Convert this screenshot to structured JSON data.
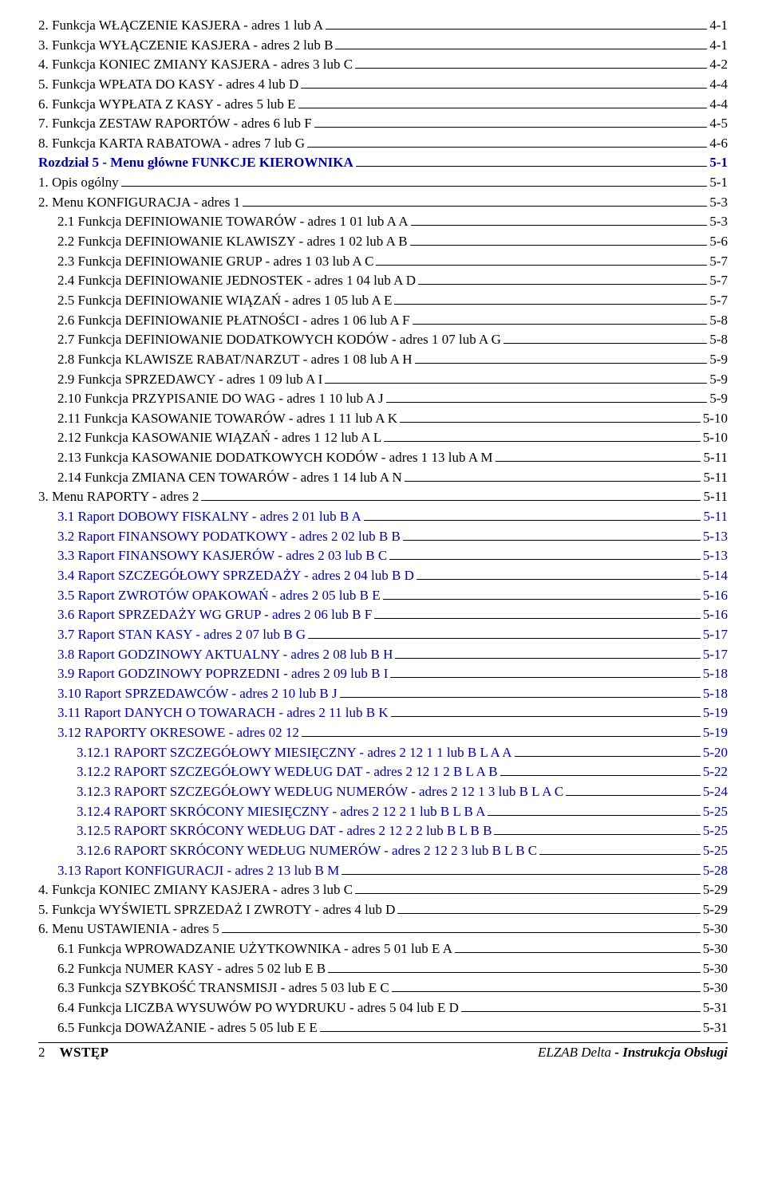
{
  "toc": [
    {
      "text": "2. Funkcja WŁĄCZENIE KASJERA - adres 1 lub A",
      "page": "4-1",
      "indent": 0,
      "style": "black"
    },
    {
      "text": "3. Funkcja WYŁĄCZENIE KASJERA - adres 2 lub B",
      "page": "4-1",
      "indent": 0,
      "style": "black"
    },
    {
      "text": "4. Funkcja KONIEC ZMIANY KASJERA - adres 3 lub C",
      "page": "4-2",
      "indent": 0,
      "style": "black"
    },
    {
      "text": "5. Funkcja WPŁATA DO KASY - adres 4 lub D",
      "page": "4-4",
      "indent": 0,
      "style": "black"
    },
    {
      "text": "6. Funkcja WYPŁATA Z KASY - adres 5 lub E",
      "page": "4-4",
      "indent": 0,
      "style": "black"
    },
    {
      "text": "7. Funkcja ZESTAW RAPORTÓW - adres 6 lub F",
      "page": "4-5",
      "indent": 0,
      "style": "black"
    },
    {
      "text": "8. Funkcja KARTA RABATOWA - adres 7 lub G",
      "page": "4-6",
      "indent": 0,
      "style": "black"
    },
    {
      "text": "Rozdział 5 - Menu główne FUNKCJE KIEROWNIKA",
      "page": "5-1",
      "indent": 0,
      "style": "blue-bold"
    },
    {
      "text": "1. Opis ogólny",
      "page": "5-1",
      "indent": 0,
      "style": "black"
    },
    {
      "text": "2. Menu KONFIGURACJA - adres 1",
      "page": "5-3",
      "indent": 0,
      "style": "black"
    },
    {
      "text": "2.1 Funkcja DEFINIOWANIE TOWARÓW - adres 1 01 lub A A",
      "page": "5-3",
      "indent": 1,
      "style": "black"
    },
    {
      "text": "2.2 Funkcja DEFINIOWANIE KLAWISZY - adres 1 02 lub A B",
      "page": "5-6",
      "indent": 1,
      "style": "black"
    },
    {
      "text": "2.3 Funkcja DEFINIOWANIE GRUP - adres 1 03 lub A C",
      "page": "5-7",
      "indent": 1,
      "style": "black"
    },
    {
      "text": "2.4 Funkcja DEFINIOWANIE JEDNOSTEK - adres 1 04 lub A D",
      "page": "5-7",
      "indent": 1,
      "style": "black"
    },
    {
      "text": "2.5 Funkcja DEFINIOWANIE WIĄZAŃ - adres 1 05 lub A E",
      "page": "5-7",
      "indent": 1,
      "style": "black"
    },
    {
      "text": "2.6 Funkcja DEFINIOWANIE PŁATNOŚCI - adres 1 06 lub A F",
      "page": "5-8",
      "indent": 1,
      "style": "black"
    },
    {
      "text": "2.7 Funkcja DEFINIOWANIE DODATKOWYCH KODÓW - adres 1 07 lub A G",
      "page": "5-8",
      "indent": 1,
      "style": "black"
    },
    {
      "text": "2.8 Funkcja KLAWISZE RABAT/NARZUT - adres 1 08 lub A H",
      "page": "5-9",
      "indent": 1,
      "style": "black"
    },
    {
      "text": "2.9 Funkcja SPRZEDAWCY - adres 1 09 lub A I",
      "page": "5-9",
      "indent": 1,
      "style": "black"
    },
    {
      "text": "2.10 Funkcja PRZYPISANIE DO WAG - adres 1 10 lub A J",
      "page": "5-9",
      "indent": 1,
      "style": "black"
    },
    {
      "text": "2.11 Funkcja KASOWANIE TOWARÓW - adres 1 11 lub A K",
      "page": "5-10",
      "indent": 1,
      "style": "black"
    },
    {
      "text": "2.12 Funkcja KASOWANIE WIĄZAŃ - adres 1 12 lub A L",
      "page": "5-10",
      "indent": 1,
      "style": "black"
    },
    {
      "text": "2.13 Funkcja KASOWANIE DODATKOWYCH KODÓW - adres 1 13 lub A M",
      "page": "5-11",
      "indent": 1,
      "style": "black"
    },
    {
      "text": "2.14 Funkcja ZMIANA CEN TOWARÓW - adres 1 14 lub A N",
      "page": "5-11",
      "indent": 1,
      "style": "black"
    },
    {
      "text": "3. Menu RAPORTY - adres 2",
      "page": "5-11",
      "indent": 0,
      "style": "black"
    },
    {
      "text": "3.1 Raport DOBOWY FISKALNY - adres 2 01 lub B A",
      "page": "5-11",
      "indent": 1,
      "style": "blue"
    },
    {
      "text": "3.2 Raport FINANSOWY PODATKOWY - adres 2 02 lub B B",
      "page": "5-13",
      "indent": 1,
      "style": "blue"
    },
    {
      "text": "3.3 Raport FINANSOWY KASJERÓW - adres 2 03 lub B C",
      "page": "5-13",
      "indent": 1,
      "style": "blue"
    },
    {
      "text": "3.4 Raport SZCZEGÓŁOWY SPRZEDAŻY - adres 2 04 lub B D",
      "page": "5-14",
      "indent": 1,
      "style": "blue"
    },
    {
      "text": "3.5 Raport ZWROTÓW OPAKOWAŃ - adres 2 05 lub B E",
      "page": "5-16",
      "indent": 1,
      "style": "blue"
    },
    {
      "text": "3.6 Raport SPRZEDAŻY WG GRUP - adres 2 06 lub B F",
      "page": "5-16",
      "indent": 1,
      "style": "blue"
    },
    {
      "text": "3.7 Raport STAN KASY - adres 2 07 lub B G",
      "page": "5-17",
      "indent": 1,
      "style": "blue"
    },
    {
      "text": "3.8 Raport GODZINOWY AKTUALNY - adres 2 08 lub B H",
      "page": "5-17",
      "indent": 1,
      "style": "blue"
    },
    {
      "text": "3.9 Raport GODZINOWY POPRZEDNI - adres 2 09 lub B I",
      "page": "5-18",
      "indent": 1,
      "style": "blue"
    },
    {
      "text": "3.10 Raport SPRZEDAWCÓW - adres 2 10 lub B J",
      "page": "5-18",
      "indent": 1,
      "style": "blue"
    },
    {
      "text": "3.11 Raport DANYCH O TOWARACH - adres 2 11 lub B K",
      "page": "5-19",
      "indent": 1,
      "style": "blue"
    },
    {
      "text": "3.12 RAPORTY OKRESOWE - adres 02 12",
      "page": "5-19",
      "indent": 1,
      "style": "blue"
    },
    {
      "text": "3.12.1 RAPORT SZCZEGÓŁOWY MIESIĘCZNY - adres 2 12 1 1 lub B L A A",
      "page": "5-20",
      "indent": 2,
      "style": "blue"
    },
    {
      "text": "3.12.2 RAPORT SZCZEGÓŁOWY WEDŁUG DAT - adres 2 12 1 2 B L A B",
      "page": "5-22",
      "indent": 2,
      "style": "blue"
    },
    {
      "text": "3.12.3 RAPORT SZCZEGÓŁOWY WEDŁUG NUMERÓW - adres 2 12 1 3 lub B L A C",
      "page": "5-24",
      "indent": 2,
      "style": "blue"
    },
    {
      "text": "3.12.4 RAPORT SKRÓCONY MIESIĘCZNY - adres 2 12 2 1 lub B L B A",
      "page": "5-25",
      "indent": 2,
      "style": "blue"
    },
    {
      "text": "3.12.5 RAPORT SKRÓCONY WEDŁUG DAT - adres 2 12 2 2 lub B L B B",
      "page": "5-25",
      "indent": 2,
      "style": "blue"
    },
    {
      "text": "3.12.6 RAPORT SKRÓCONY WEDŁUG NUMERÓW - adres 2 12 2 3 lub B L B C",
      "page": "5-25",
      "indent": 2,
      "style": "blue"
    },
    {
      "text": "3.13 Raport KONFIGURACJI - adres 2 13 lub B M",
      "page": "5-28",
      "indent": 1,
      "style": "blue"
    },
    {
      "text": "4. Funkcja KONIEC ZMIANY KASJERA - adres 3 lub C",
      "page": "5-29",
      "indent": 0,
      "style": "black"
    },
    {
      "text": "5. Funkcja WYŚWIETL SPRZEDAŻ I ZWROTY - adres 4 lub D",
      "page": "5-29",
      "indent": 0,
      "style": "black"
    },
    {
      "text": "6. Menu USTAWIENIA - adres 5",
      "page": "5-30",
      "indent": 0,
      "style": "black"
    },
    {
      "text": "6.1 Funkcja WPROWADZANIE UŻYTKOWNIKA - adres 5 01 lub E A",
      "page": "5-30",
      "indent": 1,
      "style": "black"
    },
    {
      "text": "6.2 Funkcja NUMER KASY - adres 5 02 lub E B",
      "page": "5-30",
      "indent": 1,
      "style": "black"
    },
    {
      "text": "6.3 Funkcja SZYBKOŚĆ TRANSMISJI - adres 5 03 lub E C",
      "page": "5-30",
      "indent": 1,
      "style": "black"
    },
    {
      "text": "6.4 Funkcja LICZBA WYSUWÓW PO WYDRUKU - adres 5 04 lub E D",
      "page": "5-31",
      "indent": 1,
      "style": "black"
    },
    {
      "text": "6.5 Funkcja DOWAŻANIE - adres 5 05 lub E E",
      "page": "5-31",
      "indent": 1,
      "style": "black"
    }
  ],
  "footer": {
    "pagenum": "2",
    "section": "WSTĘP",
    "brand": "ELZAB Delta",
    "tail": " - Instrukcja Obsługi"
  }
}
